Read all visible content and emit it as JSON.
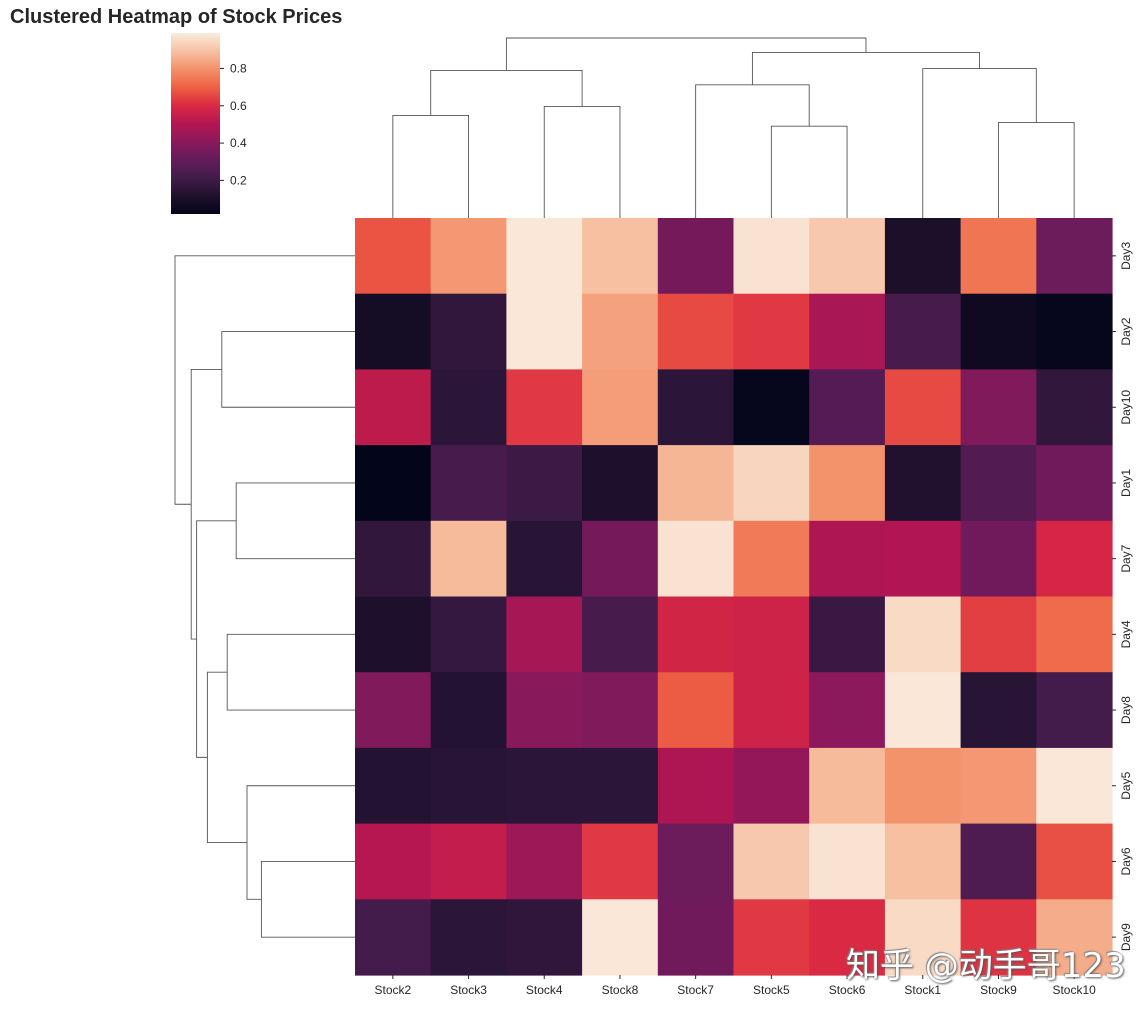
{
  "chart_data": {
    "type": "heatmap",
    "title": "Clustered Heatmap of Stock Prices",
    "columns": [
      "Stock2",
      "Stock3",
      "Stock4",
      "Stock8",
      "Stock7",
      "Stock5",
      "Stock6",
      "Stock1",
      "Stock9",
      "Stock10"
    ],
    "rows": [
      "Day3",
      "Day2",
      "Day10",
      "Day1",
      "Day7",
      "Day4",
      "Day8",
      "Day5",
      "Day6",
      "Day9"
    ],
    "values": [
      [
        0.68,
        0.81,
        0.98,
        0.89,
        0.35,
        0.97,
        0.91,
        0.1,
        0.74,
        0.33
      ],
      [
        0.08,
        0.17,
        0.98,
        0.83,
        0.66,
        0.63,
        0.48,
        0.23,
        0.06,
        0.03
      ],
      [
        0.53,
        0.15,
        0.63,
        0.82,
        0.15,
        0.03,
        0.27,
        0.66,
        0.38,
        0.17
      ],
      [
        0.02,
        0.23,
        0.2,
        0.11,
        0.87,
        0.94,
        0.8,
        0.12,
        0.26,
        0.34
      ],
      [
        0.17,
        0.88,
        0.14,
        0.35,
        0.97,
        0.75,
        0.49,
        0.5,
        0.34,
        0.59
      ],
      [
        0.11,
        0.18,
        0.47,
        0.23,
        0.58,
        0.57,
        0.19,
        0.95,
        0.64,
        0.72
      ],
      [
        0.38,
        0.13,
        0.4,
        0.38,
        0.69,
        0.57,
        0.41,
        0.98,
        0.14,
        0.22
      ],
      [
        0.13,
        0.14,
        0.15,
        0.15,
        0.49,
        0.43,
        0.88,
        0.8,
        0.81,
        0.98
      ],
      [
        0.51,
        0.54,
        0.45,
        0.63,
        0.33,
        0.91,
        0.97,
        0.89,
        0.25,
        0.67
      ],
      [
        0.22,
        0.15,
        0.16,
        0.98,
        0.34,
        0.63,
        0.6,
        0.95,
        0.62,
        0.85
      ]
    ],
    "colorbar": {
      "ticks": [
        "0.2",
        "0.4",
        "0.6",
        "0.8"
      ],
      "range": [
        0.02,
        0.99
      ]
    },
    "colormap": "rocket",
    "row_dendrogram": [
      {
        "a": 8,
        "b": 9,
        "h": 0.52
      },
      {
        "a": 7,
        "b": 10,
        "h": 0.6
      },
      {
        "a": 3,
        "b": 4,
        "h": 0.66
      },
      {
        "a": 5,
        "b": 6,
        "h": 0.71
      },
      {
        "a": 1,
        "b": 2,
        "h": 0.74
      },
      {
        "a": 11,
        "b": 13,
        "h": 0.82
      },
      {
        "a": 12,
        "b": 15,
        "h": 0.88
      },
      {
        "a": 14,
        "b": 16,
        "h": 0.91
      },
      {
        "a": 0,
        "b": 17,
        "h": 1.0
      }
    ],
    "col_dendrogram": [
      {
        "a": 5,
        "b": 6,
        "h": 0.51
      },
      {
        "a": 8,
        "b": 9,
        "h": 0.53
      },
      {
        "a": 0,
        "b": 1,
        "h": 0.57
      },
      {
        "a": 2,
        "b": 3,
        "h": 0.62
      },
      {
        "a": 4,
        "b": 10,
        "h": 0.74
      },
      {
        "a": 7,
        "b": 11,
        "h": 0.83
      },
      {
        "a": 12,
        "b": 13,
        "h": 0.82
      },
      {
        "a": 14,
        "b": 15,
        "h": 0.92
      },
      {
        "a": 16,
        "b": 17,
        "h": 1.0
      }
    ]
  },
  "watermark": "知乎 @动手哥123"
}
